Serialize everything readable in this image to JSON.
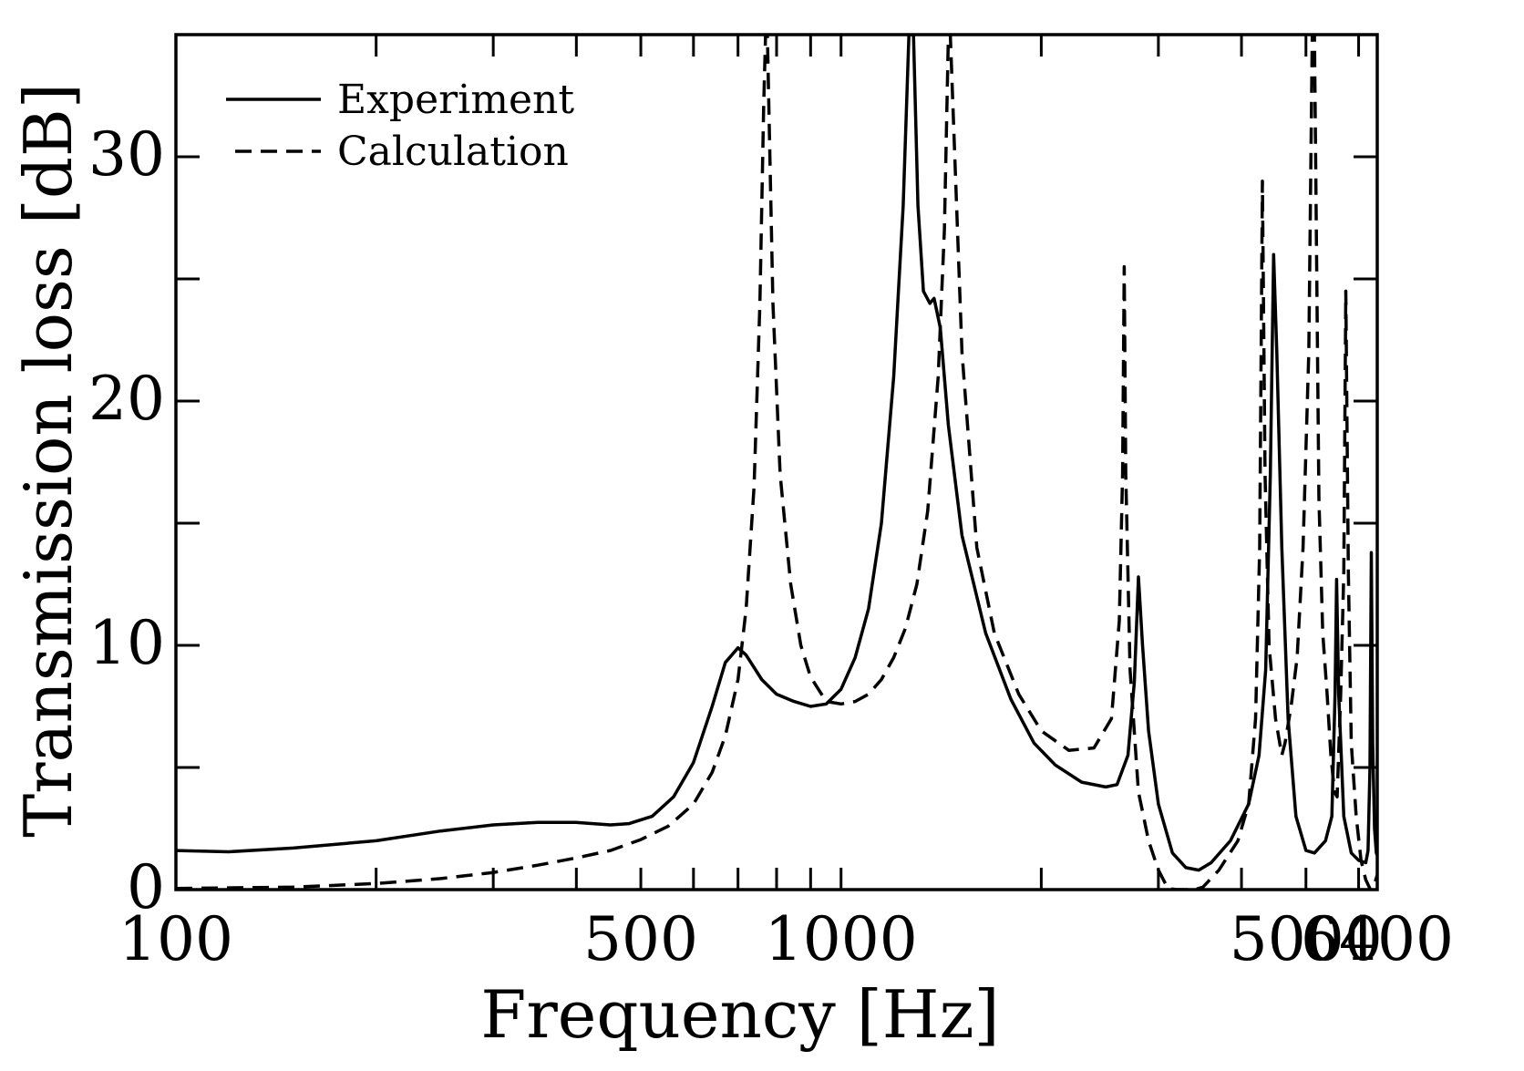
{
  "chart_data": {
    "type": "line",
    "xlabel": "Frequency [Hz]",
    "ylabel": "Transmission loss [dB]",
    "x_scale": "log",
    "xlim": [
      100,
      6400
    ],
    "ylim": [
      0,
      35
    ],
    "x_ticks": [
      {
        "value": 100,
        "label": "100"
      },
      {
        "value": 500,
        "label": "500"
      },
      {
        "value": 1000,
        "label": "1000"
      },
      {
        "value": 5000,
        "label": "5000"
      },
      {
        "value": 6400,
        "label": "6400"
      }
    ],
    "x_minor_ticks": [
      200,
      300,
      400,
      600,
      700,
      800,
      900,
      2000,
      3000,
      4000,
      6000
    ],
    "y_ticks": [
      {
        "value": 0,
        "label": "0"
      },
      {
        "value": 10,
        "label": "10"
      },
      {
        "value": 20,
        "label": "20"
      },
      {
        "value": 30,
        "label": "30"
      }
    ],
    "y_minor_ticks": [
      5,
      15,
      25
    ],
    "grid": false,
    "legend": {
      "position": "top-left"
    },
    "series": [
      {
        "name": "Experiment",
        "style": "solid",
        "color": "#000000",
        "points": [
          [
            100,
            1.6
          ],
          [
            120,
            1.55
          ],
          [
            150,
            1.7
          ],
          [
            200,
            2.0
          ],
          [
            250,
            2.4
          ],
          [
            300,
            2.65
          ],
          [
            350,
            2.75
          ],
          [
            400,
            2.75
          ],
          [
            450,
            2.65
          ],
          [
            480,
            2.7
          ],
          [
            520,
            3.0
          ],
          [
            560,
            3.8
          ],
          [
            600,
            5.2
          ],
          [
            640,
            7.5
          ],
          [
            670,
            9.3
          ],
          [
            700,
            9.9
          ],
          [
            720,
            9.6
          ],
          [
            760,
            8.6
          ],
          [
            800,
            8.0
          ],
          [
            850,
            7.7
          ],
          [
            900,
            7.5
          ],
          [
            950,
            7.6
          ],
          [
            1000,
            8.2
          ],
          [
            1050,
            9.5
          ],
          [
            1100,
            11.5
          ],
          [
            1150,
            15.0
          ],
          [
            1200,
            21.0
          ],
          [
            1240,
            28.0
          ],
          [
            1265,
            35.0
          ],
          [
            1285,
            35.0
          ],
          [
            1305,
            28.0
          ],
          [
            1330,
            24.5
          ],
          [
            1360,
            24.0
          ],
          [
            1380,
            24.2
          ],
          [
            1410,
            23.0
          ],
          [
            1450,
            19.0
          ],
          [
            1520,
            14.5
          ],
          [
            1650,
            10.5
          ],
          [
            1800,
            7.8
          ],
          [
            1950,
            6.0
          ],
          [
            2100,
            5.1
          ],
          [
            2300,
            4.4
          ],
          [
            2500,
            4.2
          ],
          [
            2600,
            4.3
          ],
          [
            2700,
            5.5
          ],
          [
            2760,
            8.5
          ],
          [
            2800,
            12.8
          ],
          [
            2840,
            10.0
          ],
          [
            2900,
            6.5
          ],
          [
            3000,
            3.5
          ],
          [
            3150,
            1.5
          ],
          [
            3300,
            0.9
          ],
          [
            3450,
            0.8
          ],
          [
            3600,
            1.1
          ],
          [
            3850,
            2.0
          ],
          [
            4100,
            3.5
          ],
          [
            4250,
            5.5
          ],
          [
            4350,
            9.0
          ],
          [
            4420,
            17.0
          ],
          [
            4470,
            26.0
          ],
          [
            4520,
            22.0
          ],
          [
            4600,
            14.0
          ],
          [
            4700,
            7.0
          ],
          [
            4830,
            3.0
          ],
          [
            5000,
            1.6
          ],
          [
            5150,
            1.5
          ],
          [
            5350,
            2.0
          ],
          [
            5470,
            3.0
          ],
          [
            5530,
            8.0
          ],
          [
            5560,
            12.7
          ],
          [
            5600,
            8.0
          ],
          [
            5700,
            3.0
          ],
          [
            5850,
            1.5
          ],
          [
            6000,
            1.2
          ],
          [
            6150,
            1.1
          ],
          [
            6200,
            1.6
          ],
          [
            6240,
            5.0
          ],
          [
            6270,
            13.8
          ],
          [
            6300,
            6.0
          ],
          [
            6340,
            2.5
          ],
          [
            6380,
            1.5
          ],
          [
            6400,
            1.4
          ]
        ]
      },
      {
        "name": "Calculation",
        "style": "dashed",
        "color": "#000000",
        "points": [
          [
            100,
            0.05
          ],
          [
            150,
            0.1
          ],
          [
            200,
            0.25
          ],
          [
            250,
            0.45
          ],
          [
            300,
            0.7
          ],
          [
            350,
            1.0
          ],
          [
            400,
            1.3
          ],
          [
            450,
            1.6
          ],
          [
            500,
            2.05
          ],
          [
            550,
            2.6
          ],
          [
            600,
            3.5
          ],
          [
            640,
            4.8
          ],
          [
            670,
            6.3
          ],
          [
            700,
            8.6
          ],
          [
            720,
            11.5
          ],
          [
            740,
            16.5
          ],
          [
            755,
            24.0
          ],
          [
            765,
            32.0
          ],
          [
            770,
            35.0
          ],
          [
            775,
            35.0
          ],
          [
            790,
            24.0
          ],
          [
            810,
            17.0
          ],
          [
            840,
            12.5
          ],
          [
            870,
            10.0
          ],
          [
            900,
            8.7
          ],
          [
            950,
            7.7
          ],
          [
            1000,
            7.6
          ],
          [
            1050,
            7.7
          ],
          [
            1100,
            8.0
          ],
          [
            1150,
            8.6
          ],
          [
            1200,
            9.5
          ],
          [
            1250,
            10.7
          ],
          [
            1300,
            12.5
          ],
          [
            1350,
            15.5
          ],
          [
            1400,
            21.0
          ],
          [
            1430,
            27.0
          ],
          [
            1450,
            35.0
          ],
          [
            1460,
            35.0
          ],
          [
            1520,
            22.0
          ],
          [
            1600,
            14.0
          ],
          [
            1700,
            10.5
          ],
          [
            1850,
            8.0
          ],
          [
            2000,
            6.5
          ],
          [
            2200,
            5.7
          ],
          [
            2400,
            5.8
          ],
          [
            2550,
            7.0
          ],
          [
            2620,
            11.0
          ],
          [
            2650,
            17.0
          ],
          [
            2665,
            25.5
          ],
          [
            2680,
            17.0
          ],
          [
            2720,
            9.0
          ],
          [
            2800,
            4.0
          ],
          [
            2900,
            2.0
          ],
          [
            3000,
            0.8
          ],
          [
            3100,
            0.05
          ],
          [
            3200,
            0
          ],
          [
            3400,
            0
          ],
          [
            3500,
            0.1
          ],
          [
            3700,
            0.8
          ],
          [
            3950,
            2.0
          ],
          [
            4100,
            3.5
          ],
          [
            4200,
            7.0
          ],
          [
            4260,
            14.0
          ],
          [
            4300,
            29.0
          ],
          [
            4340,
            17.0
          ],
          [
            4400,
            10.0
          ],
          [
            4500,
            7.0
          ],
          [
            4600,
            5.5
          ],
          [
            4650,
            6.0
          ],
          [
            4750,
            7.5
          ],
          [
            4850,
            9.5
          ],
          [
            4950,
            14.0
          ],
          [
            5050,
            22.0
          ],
          [
            5110,
            35.0
          ],
          [
            5150,
            35.0
          ],
          [
            5230,
            16.0
          ],
          [
            5300,
            10.5
          ],
          [
            5380,
            8.0
          ],
          [
            5450,
            5.5
          ],
          [
            5520,
            4.0
          ],
          [
            5570,
            3.8
          ],
          [
            5640,
            8.0
          ],
          [
            5700,
            13.0
          ],
          [
            5740,
            24.5
          ],
          [
            5790,
            13.0
          ],
          [
            5850,
            6.0
          ],
          [
            5950,
            3.0
          ],
          [
            6050,
            1.2
          ],
          [
            6150,
            0.4
          ],
          [
            6250,
            0
          ],
          [
            6350,
            0.3
          ],
          [
            6400,
            0.6
          ]
        ]
      }
    ]
  }
}
